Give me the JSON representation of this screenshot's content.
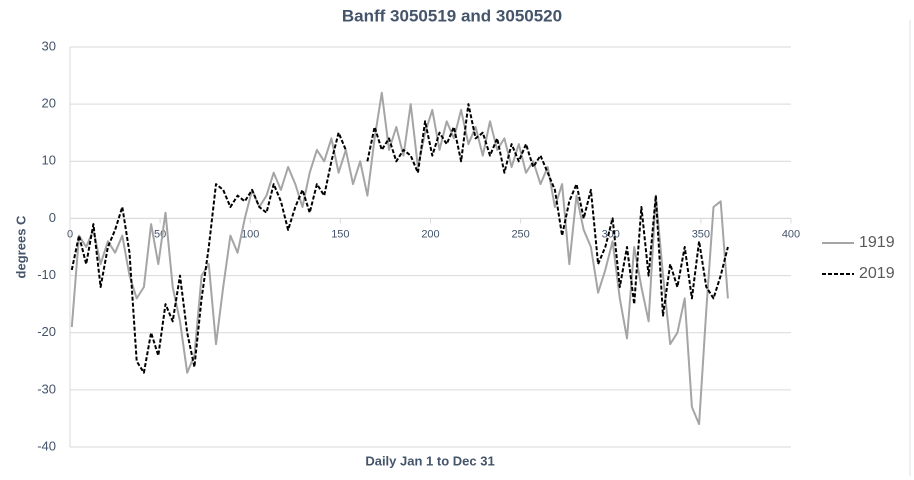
{
  "chart_data": {
    "type": "line",
    "title": "Banff 3050519 and 3050520",
    "x_label": "Daily Jan 1 to Dec 31",
    "y_label": "degrees C",
    "x": [
      1,
      5,
      9,
      13,
      17,
      21,
      25,
      29,
      33,
      37,
      41,
      45,
      49,
      53,
      57,
      61,
      65,
      69,
      73,
      77,
      81,
      85,
      89,
      93,
      97,
      101,
      105,
      109,
      113,
      117,
      121,
      125,
      129,
      133,
      137,
      141,
      145,
      149,
      153,
      157,
      161,
      165,
      169,
      173,
      177,
      181,
      185,
      189,
      193,
      197,
      201,
      205,
      209,
      213,
      217,
      221,
      225,
      229,
      233,
      237,
      241,
      245,
      249,
      253,
      257,
      261,
      265,
      269,
      273,
      277,
      281,
      285,
      289,
      293,
      297,
      301,
      305,
      309,
      313,
      317,
      321,
      325,
      329,
      333,
      337,
      341,
      345,
      349,
      353,
      357,
      361,
      365
    ],
    "series": [
      {
        "name": "1919",
        "color": "#a5a5a5",
        "line_style": "solid",
        "values": [
          -19,
          -3,
          -5,
          -2,
          -8,
          -4,
          -6,
          -3,
          -10,
          -14,
          -12,
          -1,
          -8,
          1,
          -12,
          -18,
          -27,
          -24,
          -10,
          -8,
          -22,
          -12,
          -3,
          -6,
          0,
          5,
          2,
          4,
          8,
          5,
          9,
          6,
          2,
          8,
          12,
          10,
          14,
          8,
          12,
          6,
          10,
          4,
          14,
          22,
          12,
          16,
          11,
          20,
          9,
          15,
          19,
          12,
          17,
          14,
          19,
          13,
          16,
          11,
          17,
          12,
          14,
          9,
          13,
          8,
          10,
          6,
          9,
          2,
          6,
          -8,
          4,
          -2,
          -5,
          -13,
          -9,
          -4,
          -14,
          -21,
          -5,
          -12,
          -18,
          4,
          -10,
          -22,
          -20,
          -14,
          -33,
          -36,
          -16,
          2,
          3,
          -14
        ]
      },
      {
        "name": "2019",
        "color": "#000000",
        "line_style": "dashed",
        "values": [
          -9,
          -3,
          -8,
          -1,
          -12,
          -5,
          -2,
          2,
          -6,
          -25,
          -27,
          -20,
          -24,
          -15,
          -18,
          -10,
          -20,
          -26,
          -14,
          -5,
          6,
          5,
          2,
          4,
          3,
          5,
          2,
          1,
          6,
          3,
          -2,
          2,
          5,
          1,
          6,
          4,
          10,
          15,
          12,
          null,
          null,
          10,
          16,
          12,
          14,
          10,
          12,
          11,
          8,
          17,
          11,
          15,
          13,
          16,
          10,
          20,
          14,
          15,
          11,
          14,
          8,
          13,
          10,
          13,
          9,
          11,
          8,
          5,
          -3,
          3,
          6,
          0,
          5,
          -8,
          -5,
          0,
          -12,
          -5,
          -15,
          2,
          -10,
          4,
          -17,
          -8,
          -12,
          -5,
          -14,
          -4,
          -12,
          -14,
          -10,
          -5
        ]
      }
    ],
    "xlim": [
      0,
      400
    ],
    "xticks": [
      0,
      50,
      100,
      150,
      200,
      250,
      300,
      350,
      400
    ],
    "ylim": [
      -40,
      30
    ],
    "yticks": [
      -40,
      -30,
      -20,
      -10,
      0,
      10,
      20,
      30
    ],
    "grid": true,
    "legend": "right"
  }
}
